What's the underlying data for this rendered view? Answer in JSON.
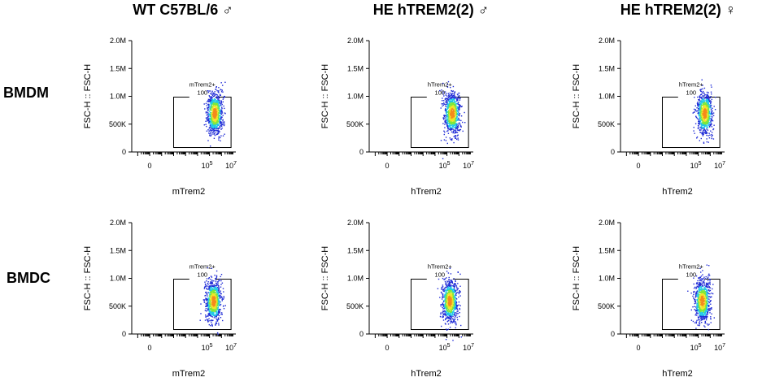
{
  "columns": [
    {
      "title": "WT C57BL/6 ♂"
    },
    {
      "title": "HE hTREM2(2) ♂"
    },
    {
      "title": "HE hTREM2(2) ♀"
    }
  ],
  "rows": [
    {
      "label": "BMDM"
    },
    {
      "label": "BMDC"
    }
  ],
  "colors": {
    "density_low": "#1f2bd6",
    "density_mid": "#1fc8e8",
    "density_midhigh": "#7ee83a",
    "density_high": "#f2e52a",
    "density_peak": "#f58a1c"
  },
  "chart_data": [
    {
      "type": "scatter",
      "panel": "BMDM / WT C57BL/6 ♂",
      "xlabel": "mTrem2",
      "ylabel": "FSC-H :: FSC-H",
      "y_tick_labels": [
        "0",
        "500K",
        "1.0M",
        "1.5M",
        "2.0M"
      ],
      "x_tick_labels": [
        "0",
        "10",
        "10"
      ],
      "x_tick_exponents": [
        "",
        "5",
        "7"
      ],
      "ylim": [
        0,
        2000000
      ],
      "gate": {
        "name": "mTrem2+",
        "percent": "100"
      },
      "population_center": {
        "x_log": 5.4,
        "y": 700000
      }
    },
    {
      "type": "scatter",
      "panel": "BMDM / HE hTREM2(2) ♂",
      "xlabel": "hTrem2",
      "ylabel": "FSC-H :: FSC-H",
      "y_tick_labels": [
        "0",
        "500K",
        "1.0M",
        "1.5M",
        "2.0M"
      ],
      "x_tick_labels": [
        "0",
        "10",
        "10"
      ],
      "x_tick_exponents": [
        "",
        "5",
        "7"
      ],
      "ylim": [
        0,
        2000000
      ],
      "gate": {
        "name": "hTrem2+",
        "percent": "100"
      },
      "population_center": {
        "x_log": 5.4,
        "y": 700000
      }
    },
    {
      "type": "scatter",
      "panel": "BMDM / HE hTREM2(2) ♀",
      "xlabel": "hTrem2",
      "ylabel": "FSC-H :: FSC-H",
      "y_tick_labels": [
        "0",
        "500K",
        "1.0M",
        "1.5M",
        "2.0M"
      ],
      "x_tick_labels": [
        "0",
        "10",
        "10"
      ],
      "x_tick_exponents": [
        "",
        "5",
        "7"
      ],
      "ylim": [
        0,
        2000000
      ],
      "gate": {
        "name": "hTrem2+",
        "percent": "100"
      },
      "population_center": {
        "x_log": 5.5,
        "y": 700000
      }
    },
    {
      "type": "scatter",
      "panel": "BMDC / WT C57BL/6 ♂",
      "xlabel": "mTrem2",
      "ylabel": "FSC-H :: FSC-H",
      "y_tick_labels": [
        "0",
        "500K",
        "1.0M",
        "1.5M",
        "2.0M"
      ],
      "x_tick_labels": [
        "0",
        "10",
        "10"
      ],
      "x_tick_exponents": [
        "",
        "5",
        "7"
      ],
      "ylim": [
        0,
        2000000
      ],
      "gate": {
        "name": "mTrem2+",
        "percent": "100"
      },
      "population_center": {
        "x_log": 5.3,
        "y": 600000
      }
    },
    {
      "type": "scatter",
      "panel": "BMDC / HE hTREM2(2) ♂",
      "xlabel": "hTrem2",
      "ylabel": "FSC-H :: FSC-H",
      "y_tick_labels": [
        "0",
        "500K",
        "1.0M",
        "1.5M",
        "2.0M"
      ],
      "x_tick_labels": [
        "0",
        "10",
        "10"
      ],
      "x_tick_exponents": [
        "",
        "5",
        "7"
      ],
      "ylim": [
        0,
        2000000
      ],
      "gate": {
        "name": "hTrem2+",
        "percent": "100"
      },
      "population_center": {
        "x_log": 5.2,
        "y": 600000
      }
    },
    {
      "type": "scatter",
      "panel": "BMDC / HE hTREM2(2) ♀",
      "xlabel": "hTrem2",
      "ylabel": "FSC-H :: FSC-H",
      "y_tick_labels": [
        "0",
        "500K",
        "1.0M",
        "1.5M",
        "2.0M"
      ],
      "x_tick_labels": [
        "0",
        "10",
        "10"
      ],
      "x_tick_exponents": [
        "",
        "5",
        "7"
      ],
      "ylim": [
        0,
        2000000
      ],
      "gate": {
        "name": "hTrem2+",
        "percent": "100"
      },
      "population_center": {
        "x_log": 5.3,
        "y": 600000
      }
    }
  ]
}
